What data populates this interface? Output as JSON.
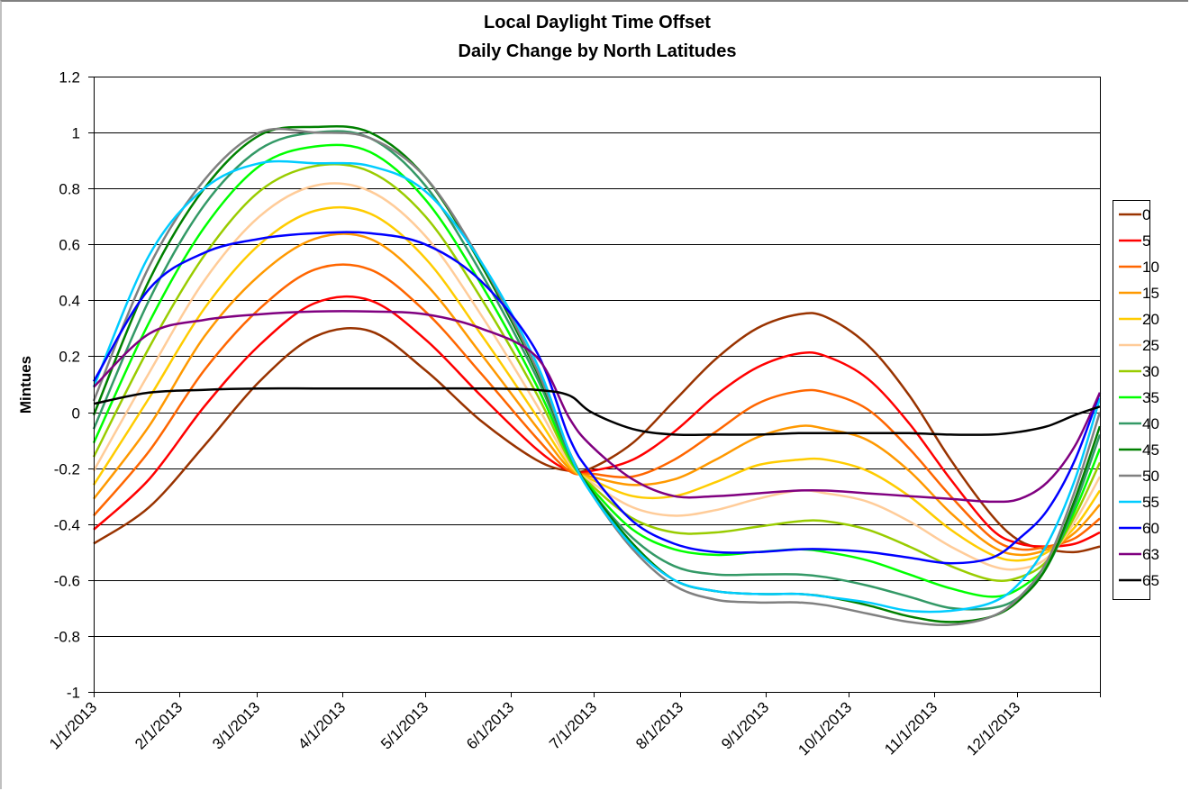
{
  "chart_data": {
    "type": "line",
    "title": "Local Daylight Time Offset",
    "subtitle": "Daily Change by North Latitudes",
    "xlabel": "",
    "ylabel": "Mintues",
    "ylim": [
      -1,
      1.2
    ],
    "yticks": [
      1.2,
      1,
      0.8,
      0.6,
      0.4,
      0.2,
      0,
      -0.2,
      -0.4,
      -0.6,
      -0.8,
      -1
    ],
    "ytick_labels": [
      "1.2",
      "1",
      "0.8",
      "0.6",
      "0.4",
      "0.2",
      "0",
      "-0.2",
      "-0.4",
      "-0.6",
      "-0.8",
      "-1"
    ],
    "xlim_days": [
      0,
      364
    ],
    "xticks_days": [
      0,
      31,
      59,
      90,
      120,
      151,
      181,
      212,
      243,
      273,
      304,
      334,
      364
    ],
    "xtick_labels": [
      "1/1/2013",
      "2/1/2013",
      "3/1/2013",
      "4/1/2013",
      "5/1/2013",
      "6/1/2013",
      "7/1/2013",
      "8/1/2013",
      "9/1/2013",
      "10/1/2013",
      "11/1/2013",
      "12/1/2013",
      ""
    ],
    "grid": true,
    "legend_position": "right",
    "x_days": [
      0,
      20,
      40,
      60,
      80,
      100,
      120,
      140,
      160,
      172,
      180,
      195,
      210,
      225,
      240,
      255,
      265,
      280,
      295,
      310,
      325,
      335,
      345,
      355,
      364
    ],
    "series": [
      {
        "name": "0",
        "color": "#993300",
        "values": [
          -0.47,
          -0.34,
          -0.12,
          0.11,
          0.27,
          0.29,
          0.15,
          -0.03,
          -0.17,
          -0.21,
          -0.2,
          -0.11,
          0.04,
          0.19,
          0.3,
          0.35,
          0.34,
          0.24,
          0.06,
          -0.17,
          -0.37,
          -0.46,
          -0.49,
          -0.5,
          -0.48
        ]
      },
      {
        "name": "5",
        "color": "#ff0000",
        "values": [
          -0.42,
          -0.24,
          0.02,
          0.24,
          0.39,
          0.4,
          0.26,
          0.06,
          -0.13,
          -0.21,
          -0.21,
          -0.17,
          -0.07,
          0.06,
          0.16,
          0.21,
          0.2,
          0.12,
          -0.04,
          -0.24,
          -0.42,
          -0.47,
          -0.48,
          -0.47,
          -0.43
        ]
      },
      {
        "name": "10",
        "color": "#ff6600",
        "values": [
          -0.37,
          -0.14,
          0.15,
          0.37,
          0.51,
          0.51,
          0.36,
          0.14,
          -0.09,
          -0.21,
          -0.22,
          -0.23,
          -0.17,
          -0.07,
          0.03,
          0.075,
          0.07,
          0.01,
          -0.13,
          -0.3,
          -0.45,
          -0.49,
          -0.48,
          -0.45,
          -0.38
        ]
      },
      {
        "name": "15",
        "color": "#ff9900",
        "values": [
          -0.31,
          -0.05,
          0.27,
          0.49,
          0.62,
          0.62,
          0.46,
          0.21,
          -0.05,
          -0.2,
          -0.23,
          -0.26,
          -0.24,
          -0.17,
          -0.09,
          -0.05,
          -0.06,
          -0.1,
          -0.21,
          -0.36,
          -0.48,
          -0.51,
          -0.49,
          -0.43,
          -0.33
        ]
      },
      {
        "name": "20",
        "color": "#ffcc00",
        "values": [
          -0.26,
          0.05,
          0.37,
          0.6,
          0.72,
          0.71,
          0.55,
          0.28,
          -0.01,
          -0.19,
          -0.24,
          -0.3,
          -0.3,
          -0.25,
          -0.19,
          -0.17,
          -0.17,
          -0.21,
          -0.3,
          -0.42,
          -0.51,
          -0.53,
          -0.5,
          -0.41,
          -0.28
        ]
      },
      {
        "name": "25",
        "color": "#ffcc99",
        "values": [
          -0.21,
          0.14,
          0.47,
          0.7,
          0.81,
          0.79,
          0.63,
          0.35,
          0.03,
          -0.18,
          -0.25,
          -0.34,
          -0.37,
          -0.35,
          -0.31,
          -0.28,
          -0.29,
          -0.32,
          -0.39,
          -0.48,
          -0.55,
          -0.56,
          -0.52,
          -0.39,
          -0.23
        ]
      },
      {
        "name": "30",
        "color": "#99cc00",
        "values": [
          -0.16,
          0.23,
          0.56,
          0.79,
          0.88,
          0.86,
          0.7,
          0.41,
          0.07,
          -0.17,
          -0.26,
          -0.38,
          -0.43,
          -0.43,
          -0.41,
          -0.39,
          -0.39,
          -0.42,
          -0.48,
          -0.55,
          -0.6,
          -0.59,
          -0.53,
          -0.37,
          -0.18
        ]
      },
      {
        "name": "35",
        "color": "#00ff00",
        "values": [
          -0.11,
          0.32,
          0.66,
          0.88,
          0.95,
          0.93,
          0.76,
          0.46,
          0.1,
          -0.16,
          -0.27,
          -0.42,
          -0.49,
          -0.51,
          -0.5,
          -0.49,
          -0.5,
          -0.53,
          -0.58,
          -0.63,
          -0.66,
          -0.63,
          -0.54,
          -0.35,
          -0.13
        ]
      },
      {
        "name": "40",
        "color": "#339966",
        "values": [
          -0.06,
          0.4,
          0.74,
          0.94,
          1.0,
          0.98,
          0.81,
          0.5,
          0.13,
          -0.15,
          -0.28,
          -0.45,
          -0.55,
          -0.58,
          -0.58,
          -0.58,
          -0.59,
          -0.62,
          -0.66,
          -0.7,
          -0.7,
          -0.66,
          -0.55,
          -0.33,
          -0.08
        ]
      },
      {
        "name": "45",
        "color": "#008000",
        "values": [
          -0.01,
          0.47,
          0.8,
          0.99,
          1.02,
          1.0,
          0.84,
          0.53,
          0.15,
          -0.14,
          -0.28,
          -0.47,
          -0.6,
          -0.64,
          -0.65,
          -0.65,
          -0.66,
          -0.69,
          -0.73,
          -0.75,
          -0.73,
          -0.67,
          -0.55,
          -0.31,
          -0.05
        ]
      },
      {
        "name": "50",
        "color": "#808080",
        "values": [
          0.04,
          0.52,
          0.83,
          1.0,
          1.0,
          0.98,
          0.84,
          0.54,
          0.16,
          -0.14,
          -0.29,
          -0.49,
          -0.62,
          -0.67,
          -0.68,
          -0.68,
          -0.69,
          -0.72,
          -0.75,
          -0.76,
          -0.73,
          -0.66,
          -0.53,
          -0.28,
          0.0
        ]
      },
      {
        "name": "55",
        "color": "#00ccff",
        "values": [
          0.09,
          0.56,
          0.8,
          0.89,
          0.89,
          0.88,
          0.79,
          0.54,
          0.18,
          -0.14,
          -0.29,
          -0.48,
          -0.6,
          -0.64,
          -0.65,
          -0.65,
          -0.66,
          -0.68,
          -0.71,
          -0.71,
          -0.68,
          -0.61,
          -0.47,
          -0.24,
          0.05
        ]
      },
      {
        "name": "60",
        "color": "#0000ff",
        "values": [
          0.11,
          0.44,
          0.57,
          0.62,
          0.64,
          0.64,
          0.6,
          0.47,
          0.22,
          -0.09,
          -0.22,
          -0.39,
          -0.47,
          -0.5,
          -0.5,
          -0.49,
          -0.49,
          -0.5,
          -0.52,
          -0.54,
          -0.52,
          -0.45,
          -0.35,
          -0.17,
          0.07
        ]
      },
      {
        "name": "63",
        "color": "#800080",
        "values": [
          0.09,
          0.28,
          0.33,
          0.35,
          0.36,
          0.36,
          0.35,
          0.3,
          0.2,
          -0.02,
          -0.12,
          -0.24,
          -0.3,
          -0.3,
          -0.29,
          -0.28,
          -0.28,
          -0.29,
          -0.3,
          -0.31,
          -0.32,
          -0.31,
          -0.25,
          -0.12,
          0.07
        ]
      },
      {
        "name": "65",
        "color": "#000000",
        "values": [
          0.03,
          0.07,
          0.08,
          0.085,
          0.085,
          0.085,
          0.085,
          0.085,
          0.08,
          0.06,
          0.0,
          -0.06,
          -0.08,
          -0.08,
          -0.08,
          -0.075,
          -0.075,
          -0.075,
          -0.075,
          -0.08,
          -0.08,
          -0.07,
          -0.05,
          -0.01,
          0.02
        ]
      }
    ]
  }
}
